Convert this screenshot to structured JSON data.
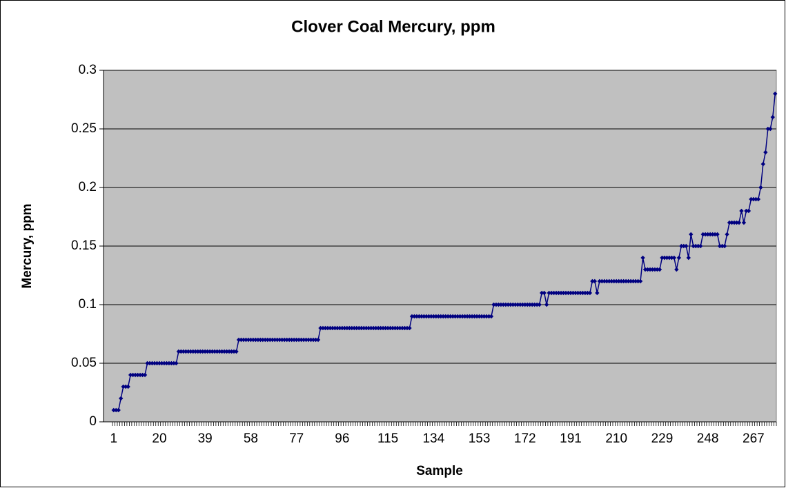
{
  "chart_data": {
    "type": "line",
    "title": "Clover Coal Mercury, ppm",
    "x_label": "Sample",
    "y_label": "Mercury, ppm",
    "x": [
      1,
      2,
      3,
      4,
      5,
      6,
      7,
      8,
      9,
      10,
      11,
      12,
      13,
      14,
      15,
      16,
      17,
      18,
      19,
      20,
      21,
      22,
      23,
      24,
      25,
      26,
      27,
      28,
      29,
      30,
      31,
      32,
      33,
      34,
      35,
      36,
      37,
      38,
      39,
      40,
      41,
      42,
      43,
      44,
      45,
      46,
      47,
      48,
      49,
      50,
      51,
      52,
      53,
      54,
      55,
      56,
      57,
      58,
      59,
      60,
      61,
      62,
      63,
      64,
      65,
      66,
      67,
      68,
      69,
      70,
      71,
      72,
      73,
      74,
      75,
      76,
      77,
      78,
      79,
      80,
      81,
      82,
      83,
      84,
      85,
      86,
      87,
      88,
      89,
      90,
      91,
      92,
      93,
      94,
      95,
      96,
      97,
      98,
      99,
      100,
      101,
      102,
      103,
      104,
      105,
      106,
      107,
      108,
      109,
      110,
      111,
      112,
      113,
      114,
      115,
      116,
      117,
      118,
      119,
      120,
      121,
      122,
      123,
      124,
      125,
      126,
      127,
      128,
      129,
      130,
      131,
      132,
      133,
      134,
      135,
      136,
      137,
      138,
      139,
      140,
      141,
      142,
      143,
      144,
      145,
      146,
      147,
      148,
      149,
      150,
      151,
      152,
      153,
      154,
      155,
      156,
      157,
      158,
      159,
      160,
      161,
      162,
      163,
      164,
      165,
      166,
      167,
      168,
      169,
      170,
      171,
      172,
      173,
      174,
      175,
      176,
      177,
      178,
      179,
      180,
      181,
      182,
      183,
      184,
      185,
      186,
      187,
      188,
      189,
      190,
      191,
      192,
      193,
      194,
      195,
      196,
      197,
      198,
      199,
      200,
      201,
      202,
      203,
      204,
      205,
      206,
      207,
      208,
      209,
      210,
      211,
      212,
      213,
      214,
      215,
      216,
      217,
      218,
      219,
      220,
      221,
      222,
      223,
      224,
      225,
      226,
      227,
      228,
      229,
      230,
      231,
      232,
      233,
      234,
      235,
      236,
      237,
      238,
      239,
      240,
      241,
      242,
      243,
      244,
      245,
      246,
      247,
      248,
      249,
      250,
      251,
      252,
      253,
      254,
      255,
      256,
      257,
      258,
      259,
      260,
      261,
      262,
      263,
      264,
      265,
      266,
      267,
      268,
      269,
      270,
      271,
      272,
      273,
      274,
      275,
      276
    ],
    "series": [
      {
        "name": "Mercury, ppm",
        "color": "#000080",
        "values": [
          0.01,
          0.01,
          0.01,
          0.02,
          0.03,
          0.03,
          0.03,
          0.04,
          0.04,
          0.04,
          0.04,
          0.04,
          0.04,
          0.04,
          0.05,
          0.05,
          0.05,
          0.05,
          0.05,
          0.05,
          0.05,
          0.05,
          0.05,
          0.05,
          0.05,
          0.05,
          0.05,
          0.06,
          0.06,
          0.06,
          0.06,
          0.06,
          0.06,
          0.06,
          0.06,
          0.06,
          0.06,
          0.06,
          0.06,
          0.06,
          0.06,
          0.06,
          0.06,
          0.06,
          0.06,
          0.06,
          0.06,
          0.06,
          0.06,
          0.06,
          0.06,
          0.06,
          0.07,
          0.07,
          0.07,
          0.07,
          0.07,
          0.07,
          0.07,
          0.07,
          0.07,
          0.07,
          0.07,
          0.07,
          0.07,
          0.07,
          0.07,
          0.07,
          0.07,
          0.07,
          0.07,
          0.07,
          0.07,
          0.07,
          0.07,
          0.07,
          0.07,
          0.07,
          0.07,
          0.07,
          0.07,
          0.07,
          0.07,
          0.07,
          0.07,
          0.07,
          0.08,
          0.08,
          0.08,
          0.08,
          0.08,
          0.08,
          0.08,
          0.08,
          0.08,
          0.08,
          0.08,
          0.08,
          0.08,
          0.08,
          0.08,
          0.08,
          0.08,
          0.08,
          0.08,
          0.08,
          0.08,
          0.08,
          0.08,
          0.08,
          0.08,
          0.08,
          0.08,
          0.08,
          0.08,
          0.08,
          0.08,
          0.08,
          0.08,
          0.08,
          0.08,
          0.08,
          0.08,
          0.08,
          0.09,
          0.09,
          0.09,
          0.09,
          0.09,
          0.09,
          0.09,
          0.09,
          0.09,
          0.09,
          0.09,
          0.09,
          0.09,
          0.09,
          0.09,
          0.09,
          0.09,
          0.09,
          0.09,
          0.09,
          0.09,
          0.09,
          0.09,
          0.09,
          0.09,
          0.09,
          0.09,
          0.09,
          0.09,
          0.09,
          0.09,
          0.09,
          0.09,
          0.09,
          0.1,
          0.1,
          0.1,
          0.1,
          0.1,
          0.1,
          0.1,
          0.1,
          0.1,
          0.1,
          0.1,
          0.1,
          0.1,
          0.1,
          0.1,
          0.1,
          0.1,
          0.1,
          0.1,
          0.1,
          0.11,
          0.11,
          0.1,
          0.11,
          0.11,
          0.11,
          0.11,
          0.11,
          0.11,
          0.11,
          0.11,
          0.11,
          0.11,
          0.11,
          0.11,
          0.11,
          0.11,
          0.11,
          0.11,
          0.11,
          0.11,
          0.12,
          0.12,
          0.11,
          0.12,
          0.12,
          0.12,
          0.12,
          0.12,
          0.12,
          0.12,
          0.12,
          0.12,
          0.12,
          0.12,
          0.12,
          0.12,
          0.12,
          0.12,
          0.12,
          0.12,
          0.12,
          0.14,
          0.13,
          0.13,
          0.13,
          0.13,
          0.13,
          0.13,
          0.13,
          0.14,
          0.14,
          0.14,
          0.14,
          0.14,
          0.14,
          0.13,
          0.14,
          0.15,
          0.15,
          0.15,
          0.14,
          0.16,
          0.15,
          0.15,
          0.15,
          0.15,
          0.16,
          0.16,
          0.16,
          0.16,
          0.16,
          0.16,
          0.16,
          0.15,
          0.15,
          0.15,
          0.16,
          0.17,
          0.17,
          0.17,
          0.17,
          0.17,
          0.18,
          0.17,
          0.18,
          0.18,
          0.19,
          0.19,
          0.19,
          0.19,
          0.2,
          0.22,
          0.23,
          0.25,
          0.25,
          0.26,
          0.28
        ]
      }
    ],
    "xlim": [
      0.5,
      276.5
    ],
    "xticks": [
      1,
      20,
      39,
      58,
      77,
      96,
      115,
      134,
      153,
      172,
      191,
      210,
      229,
      248,
      267
    ],
    "ylim": [
      0,
      0.3
    ],
    "yticks": [
      0,
      0.05,
      0.1,
      0.15,
      0.2,
      0.25,
      0.3
    ],
    "grid": true
  }
}
